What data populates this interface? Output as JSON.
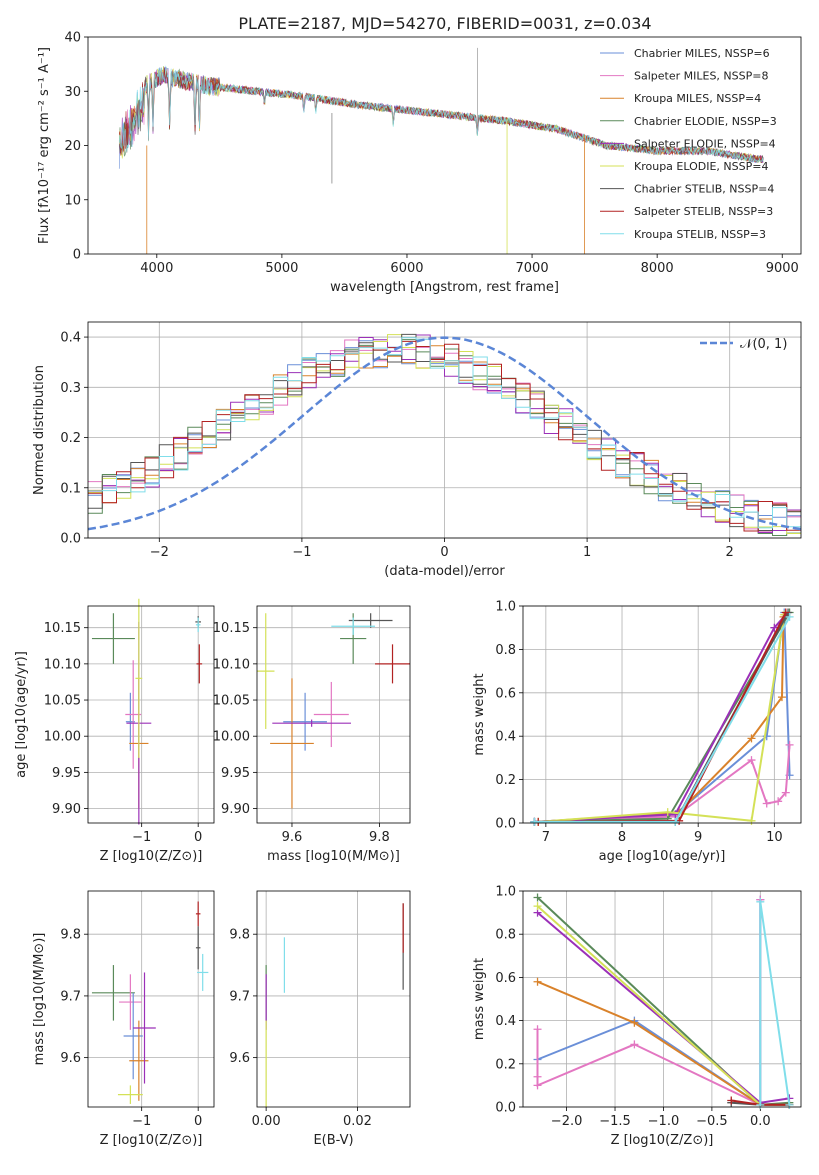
{
  "title": "PLATE=2187, MJD=54270, FIBERID=0031, z=0.034",
  "chart_data": [
    {
      "id": "spectrum",
      "type": "line",
      "xlabel": "wavelength [Angstrom, rest frame]",
      "ylabel": "Flux [fλ10⁻¹⁷ erg cm⁻² s⁻¹ A⁻¹]",
      "xlim": [
        3450,
        9150
      ],
      "ylim": [
        0,
        40
      ],
      "xticks": [
        4000,
        5000,
        6000,
        7000,
        8000,
        9000
      ],
      "yticks": [
        0,
        10,
        20,
        30,
        40
      ],
      "grid": false,
      "legend": "top-right",
      "continuum": {
        "x": [
          3700,
          3900,
          4050,
          4400,
          4800,
          5200,
          5600,
          6000,
          6400,
          6800,
          7200,
          7600,
          8000,
          8400,
          8800
        ],
        "y": [
          23,
          31,
          33,
          31,
          30,
          29,
          27.5,
          26.5,
          25.5,
          24.5,
          23,
          20,
          19,
          19,
          17.5
        ]
      },
      "series": [
        {
          "name": "Chabrier MILES, NSSP=6",
          "color": "#6a8fd8"
        },
        {
          "name": "Salpeter MILES, NSSP=8",
          "color": "#e377c2"
        },
        {
          "name": "Kroupa MILES, NSSP=4",
          "color": "#d9822b"
        },
        {
          "name": "Chabrier ELODIE, NSSP=3",
          "color": "#5a8a5a"
        },
        {
          "name": "Salpeter ELODIE, NSSP=4",
          "color": "#9b30b8"
        },
        {
          "name": "Kroupa ELODIE, NSSP=4",
          "color": "#d4e157"
        },
        {
          "name": "Chabrier STELIB, NSSP=4",
          "color": "#555555"
        },
        {
          "name": "Salpeter STELIB, NSSP=3",
          "color": "#b22222"
        },
        {
          "name": "Kroupa STELIB, NSSP=3",
          "color": "#80deea"
        }
      ]
    },
    {
      "id": "residuals",
      "type": "line",
      "xlabel": "(data-model)/error",
      "ylabel": "Normed distribution",
      "xlim": [
        -2.5,
        2.5
      ],
      "ylim": [
        0,
        0.43
      ],
      "xticks": [
        -2,
        -1,
        0,
        1,
        2
      ],
      "yticks": [
        0.0,
        0.1,
        0.2,
        0.3,
        0.4
      ],
      "grid": true,
      "legend": "top-right",
      "reference": {
        "name": "𝒩(0, 1)",
        "color": "#5b86d6"
      },
      "bins_edges": [
        -2.5,
        2.5
      ],
      "n_bins": 50
    },
    {
      "id": "age-vs-Z",
      "type": "scatter",
      "xlabel": "Z [log10(Z/Z⊙)]",
      "ylabel": "age  [log10(age/yr)]",
      "xlim": [
        -1.95,
        0.28
      ],
      "ylim": [
        9.88,
        10.18
      ],
      "xticks": [
        -1,
        0
      ],
      "yticks": [
        9.9,
        9.95,
        10.0,
        10.05,
        10.1,
        10.15
      ],
      "points": [
        {
          "x": -1.5,
          "y": 10.135,
          "xerr": 0.38,
          "yerr": 0.035,
          "color": "#5a8a5a"
        },
        {
          "x": -1.2,
          "y": 10.02,
          "xerr": 0.08,
          "yerr": 0.04,
          "color": "#6a8fd8"
        },
        {
          "x": -1.15,
          "y": 10.03,
          "xerr": 0.14,
          "yerr": 0.075,
          "color": "#e377c2"
        },
        {
          "x": -1.05,
          "y": 9.99,
          "xerr": 0.17,
          "yerr": 0.09,
          "color": "#d9822b"
        },
        {
          "x": -1.05,
          "y": 10.018,
          "xerr": 0.22,
          "yerr": 0.14,
          "color": "#9b30b8"
        },
        {
          "x": -1.05,
          "y": 10.08,
          "xerr": 0.06,
          "yerr": 0.11,
          "color": "#d4e157"
        },
        {
          "x": 0.0,
          "y": 10.158,
          "xerr": 0.05,
          "yerr": 0.008,
          "color": "#555555"
        },
        {
          "x": 0.02,
          "y": 10.1,
          "xerr": 0.05,
          "yerr": 0.027,
          "color": "#b22222"
        },
        {
          "x": 0.0,
          "y": 10.154,
          "xerr": 0.04,
          "yerr": 0.01,
          "color": "#80deea"
        }
      ]
    },
    {
      "id": "age-vs-mass",
      "type": "scatter",
      "xlabel": "mass [log10(M/M⊙)]",
      "ylabel": "",
      "xlim": [
        9.52,
        9.87
      ],
      "ylim": [
        9.88,
        10.18
      ],
      "xticks": [
        9.6,
        9.8
      ],
      "yticks": [
        9.9,
        9.95,
        10.0,
        10.05,
        10.1,
        10.15
      ],
      "points": [
        {
          "x": 9.74,
          "y": 10.135,
          "xerr": 0.03,
          "yerr": 0.035,
          "color": "#5a8a5a"
        },
        {
          "x": 9.63,
          "y": 10.02,
          "xerr": 0.05,
          "yerr": 0.04,
          "color": "#6a8fd8"
        },
        {
          "x": 9.69,
          "y": 10.03,
          "xerr": 0.04,
          "yerr": 0.045,
          "color": "#e377c2"
        },
        {
          "x": 9.6,
          "y": 9.99,
          "xerr": 0.05,
          "yerr": 0.09,
          "color": "#d9822b"
        },
        {
          "x": 9.645,
          "y": 10.018,
          "xerr": 0.09,
          "yerr": 0.005,
          "color": "#9b30b8"
        },
        {
          "x": 9.54,
          "y": 10.09,
          "xerr": 0.02,
          "yerr": 0.08,
          "color": "#d4e157"
        },
        {
          "x": 9.78,
          "y": 10.16,
          "xerr": 0.05,
          "yerr": 0.01,
          "color": "#555555"
        },
        {
          "x": 9.83,
          "y": 10.1,
          "xerr": 0.04,
          "yerr": 0.027,
          "color": "#b22222"
        },
        {
          "x": 9.74,
          "y": 10.152,
          "xerr": 0.05,
          "yerr": 0.012,
          "color": "#80deea"
        }
      ]
    },
    {
      "id": "weight-vs-age",
      "type": "line",
      "xlabel": "age  [log10(age/yr)]",
      "ylabel": "mass weight",
      "xlim": [
        6.7,
        10.35
      ],
      "ylim": [
        0,
        1.0
      ],
      "xticks": [
        7,
        8,
        9,
        10
      ],
      "yticks": [
        0.0,
        0.2,
        0.4,
        0.6,
        0.8,
        1.0
      ],
      "series": [
        {
          "color": "#6a8fd8",
          "x": [
            6.85,
            8.7,
            9.9,
            10.13,
            10.2
          ],
          "y": [
            0.005,
            0.04,
            0.4,
            0.97,
            0.22
          ]
        },
        {
          "color": "#e377c2",
          "x": [
            6.85,
            8.7,
            9.7,
            9.9,
            10.05,
            10.15,
            10.2
          ],
          "y": [
            0.005,
            0.03,
            0.29,
            0.09,
            0.1,
            0.14,
            0.36
          ]
        },
        {
          "color": "#d9822b",
          "x": [
            6.9,
            8.75,
            9.7,
            10.1,
            10.12
          ],
          "y": [
            0.005,
            0.05,
            0.39,
            0.58,
            0.95
          ]
        },
        {
          "color": "#5a8a5a",
          "x": [
            6.85,
            8.6,
            10.2
          ],
          "y": [
            0.005,
            0.02,
            0.97
          ]
        },
        {
          "color": "#9b30b8",
          "x": [
            6.85,
            8.7,
            10.0,
            10.15
          ],
          "y": [
            0.005,
            0.04,
            0.9,
            0.96
          ]
        },
        {
          "color": "#d4e157",
          "x": [
            6.9,
            8.6,
            9.7,
            10.13
          ],
          "y": [
            0.005,
            0.05,
            0.01,
            0.96
          ]
        },
        {
          "color": "#555555",
          "x": [
            6.85,
            8.7,
            10.18
          ],
          "y": [
            0.005,
            0.005,
            0.97
          ]
        },
        {
          "color": "#b22222",
          "x": [
            6.9,
            8.75,
            10.15
          ],
          "y": [
            0.005,
            0.01,
            0.97
          ]
        },
        {
          "color": "#80deea",
          "x": [
            6.85,
            8.7,
            10.2
          ],
          "y": [
            0.005,
            0.005,
            0.95
          ]
        }
      ]
    },
    {
      "id": "mass-vs-Z",
      "type": "scatter",
      "xlabel": "Z [log10(Z/Z⊙)]",
      "ylabel": "mass [log10(M/M⊙)]",
      "xlim": [
        -1.95,
        0.28
      ],
      "ylim": [
        9.52,
        9.87
      ],
      "xticks": [
        -1,
        0
      ],
      "yticks": [
        9.6,
        9.7,
        9.8
      ],
      "points": [
        {
          "x": -1.5,
          "y": 9.705,
          "xerr": 0.38,
          "yerr": 0.045,
          "color": "#5a8a5a"
        },
        {
          "x": -1.2,
          "y": 9.69,
          "xerr": 0.2,
          "yerr": 0.045,
          "color": "#e377c2"
        },
        {
          "x": -1.15,
          "y": 9.635,
          "xerr": 0.17,
          "yerr": 0.07,
          "color": "#6a8fd8"
        },
        {
          "x": -1.05,
          "y": 9.595,
          "xerr": 0.17,
          "yerr": 0.065,
          "color": "#d9822b"
        },
        {
          "x": -0.95,
          "y": 9.648,
          "xerr": 0.2,
          "yerr": 0.09,
          "color": "#9b30b8"
        },
        {
          "x": -1.2,
          "y": 9.54,
          "xerr": 0.22,
          "yerr": 0.015,
          "color": "#d4e157"
        },
        {
          "x": 0.0,
          "y": 9.778,
          "xerr": 0.04,
          "yerr": 0.035,
          "color": "#555555"
        },
        {
          "x": 0.0,
          "y": 9.833,
          "xerr": 0.04,
          "yerr": 0.02,
          "color": "#b22222"
        },
        {
          "x": 0.08,
          "y": 9.738,
          "xerr": 0.1,
          "yerr": 0.03,
          "color": "#80deea"
        }
      ]
    },
    {
      "id": "mass-vs-EBV",
      "type": "scatter",
      "xlabel": "E(B-V)",
      "ylabel": "",
      "xlim": [
        -0.002,
        0.0315
      ],
      "ylim": [
        9.52,
        9.87
      ],
      "xticks": [
        0.0,
        0.02
      ],
      "xticklabels": [
        "0.00",
        "0.02"
      ],
      "yticks": [
        9.6,
        9.7,
        9.8
      ],
      "points": [
        {
          "x": 0.0,
          "y": 9.705,
          "xerr": 0,
          "yerr": 0.045,
          "color": "#5a8a5a"
        },
        {
          "x": 0.0,
          "y": 9.69,
          "xerr": 0,
          "yerr": 0.045,
          "color": "#9b30b8"
        },
        {
          "x": 0.0,
          "y": 9.59,
          "xerr": 0,
          "yerr": 0.07,
          "color": "#d4e157"
        },
        {
          "x": 0.004,
          "y": 9.75,
          "xerr": 0,
          "yerr": 0.045,
          "color": "#80deea"
        },
        {
          "x": 0.03,
          "y": 9.78,
          "xerr": 0,
          "yerr": 0.07,
          "color": "#555555"
        },
        {
          "x": 0.03,
          "y": 9.81,
          "xerr": 0,
          "yerr": 0.04,
          "color": "#b22222"
        }
      ]
    },
    {
      "id": "weight-vs-Z",
      "type": "line",
      "xlabel": "Z [log10(Z/Z⊙)]",
      "ylabel": "mass weight",
      "xlim": [
        -2.45,
        0.42
      ],
      "ylim": [
        0,
        1.0
      ],
      "xticks": [
        -2.0,
        -1.5,
        -1.0,
        -0.5,
        0.0
      ],
      "xticklabels": [
        "−2.0",
        "−1.5",
        "−1.0",
        "−0.5",
        "0.0"
      ],
      "yticks": [
        0.0,
        0.2,
        0.4,
        0.6,
        0.8,
        1.0
      ],
      "series": [
        {
          "color": "#6a8fd8",
          "x": [
            -2.3,
            -1.3,
            0.0,
            0.0
          ],
          "y": [
            0.22,
            0.4,
            0.01,
            0.96
          ]
        },
        {
          "color": "#e377c2",
          "x": [
            -2.3,
            -2.3,
            -2.3,
            -1.3,
            0.0,
            0.0
          ],
          "y": [
            0.36,
            0.14,
            0.1,
            0.29,
            0.01,
            0.96
          ]
        },
        {
          "color": "#d9822b",
          "x": [
            -2.3,
            -1.3,
            0.0,
            0.3
          ],
          "y": [
            0.58,
            0.39,
            0.01,
            0.01
          ]
        },
        {
          "color": "#5a8a5a",
          "x": [
            -2.3,
            0.0,
            0.3
          ],
          "y": [
            0.97,
            0.01,
            0.02
          ]
        },
        {
          "color": "#9b30b8",
          "x": [
            -2.3,
            0.0,
            0.3
          ],
          "y": [
            0.9,
            0.02,
            0.04
          ]
        },
        {
          "color": "#d4e157",
          "x": [
            -2.3,
            0.0,
            0.3
          ],
          "y": [
            0.93,
            0.01,
            0.01
          ]
        },
        {
          "color": "#555555",
          "x": [
            -0.3,
            0.0,
            0.3
          ],
          "y": [
            0.02,
            0.01,
            0.01
          ]
        },
        {
          "color": "#b22222",
          "x": [
            -0.3,
            0.0,
            0.3
          ],
          "y": [
            0.03,
            0.01,
            0.01
          ]
        },
        {
          "color": "#80deea",
          "x": [
            0.0,
            0.0,
            0.3
          ],
          "y": [
            0.01,
            0.95,
            0.01
          ]
        }
      ]
    }
  ]
}
